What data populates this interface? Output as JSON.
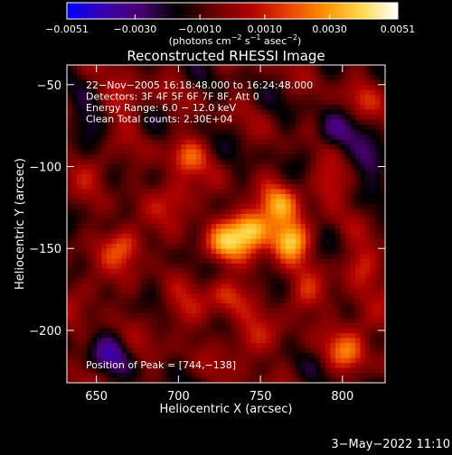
{
  "chart_data": {
    "type": "heatmap",
    "title": "Reconstructed RHESSI Image",
    "xlabel": "Heliocentric X (arcsec)",
    "ylabel": "Heliocentric Y (arcsec)",
    "xlim": [
      632,
      826
    ],
    "ylim": [
      -232,
      -38
    ],
    "x_ticks": [
      650,
      700,
      750,
      800
    ],
    "y_ticks": [
      -50,
      -100,
      -150,
      -200
    ],
    "x_tick_labels": [
      "650",
      "700",
      "750",
      "800"
    ],
    "y_tick_labels": [
      "−50",
      "−100",
      "−150",
      "−200"
    ],
    "colorbar": {
      "min": -0.0051,
      "max": 0.0051,
      "ticks": [
        -0.0051,
        -0.003,
        -0.001,
        0.001,
        0.003,
        0.0051
      ],
      "tick_labels": [
        "−0.0051",
        "−0.0030",
        "−0.0010",
        "0.0010",
        "0.0030",
        "0.0051"
      ],
      "label_parts": [
        "(photons cm",
        "−2",
        " s",
        "−1",
        " asec",
        "−2",
        ")"
      ],
      "colors": [
        "#0000ff",
        "#3a00b0",
        "#4b0070",
        "#000000",
        "#6a0000",
        "#b00000",
        "#e84000",
        "#ff9000",
        "#ffd84a",
        "#ffffff"
      ]
    },
    "annotations": [
      "22−Nov−2005 16:18:48.000 to 16:24:48.000",
      "Detectors: 3F 4F 5F 6F 7F 8F, Att 0",
      "Energy Range: 6.0 − 12.0 keV",
      "Clean     Total counts: 2.30E+04"
    ],
    "peak_text": "Position of Peak = [744,−138]",
    "sources": [
      {
        "x": 744,
        "y": -138,
        "value": 0.0051
      },
      {
        "x": 768,
        "y": -145,
        "value": 0.0046
      },
      {
        "x": 727,
        "y": -148,
        "value": 0.0032
      },
      {
        "x": 760,
        "y": -124,
        "value": 0.003
      },
      {
        "x": 668,
        "y": -148,
        "value": 0.003
      },
      {
        "x": 700,
        "y": -118,
        "value": 0.0024
      },
      {
        "x": 705,
        "y": -93,
        "value": 0.0022
      },
      {
        "x": 730,
        "y": -178,
        "value": 0.0022
      },
      {
        "x": 775,
        "y": -180,
        "value": 0.002
      },
      {
        "x": 790,
        "y": -110,
        "value": 0.002
      },
      {
        "x": 742,
        "y": -207,
        "value": 0.0022
      },
      {
        "x": 803,
        "y": -213,
        "value": 0.0024
      },
      {
        "x": 700,
        "y": -190,
        "value": 0.0016
      },
      {
        "x": 668,
        "y": -60,
        "value": 0.0018
      },
      {
        "x": 650,
        "y": -100,
        "value": 0.0015
      },
      {
        "x": 810,
        "y": -160,
        "value": 0.002
      },
      {
        "x": 812,
        "y": -195,
        "value": 0.0016
      },
      {
        "x": 810,
        "y": -60,
        "value": 0.0012
      },
      {
        "x": 645,
        "y": -175,
        "value": 0.0014
      },
      {
        "x": 665,
        "y": -215,
        "value": 0.0012
      },
      {
        "x": 795,
        "y": -80,
        "value": -0.0018
      },
      {
        "x": 660,
        "y": -215,
        "value": -0.003
      },
      {
        "x": 818,
        "y": -95,
        "value": -0.002
      },
      {
        "x": 645,
        "y": -75,
        "value": -0.0015
      }
    ]
  },
  "footer": {
    "date": "3−May−2022 11:10"
  }
}
